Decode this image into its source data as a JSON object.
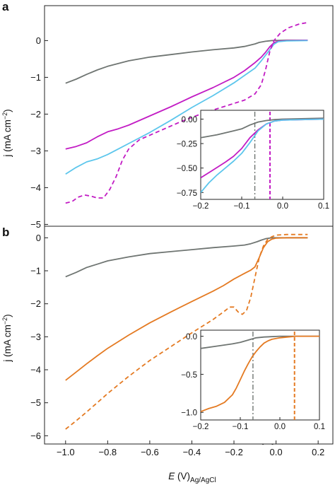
{
  "figure": {
    "panel_a_label": "a",
    "panel_b_label": "b",
    "ylabel": "j (mA cm−2)",
    "ylabel_main": "j (mA cm",
    "ylabel_exp": "−2",
    "ylabel_close": ")",
    "xlabel_E": "E",
    "xlabel_units": " (V)",
    "xlabel_sub": "Ag/AgCl"
  },
  "colors": {
    "grey": "#6f7572",
    "magenta": "#c21cc4",
    "cyan": "#5cc6ec",
    "orange": "#e47a22"
  },
  "chart_data": [
    {
      "id": "a-main",
      "type": "line",
      "ylabel": "j (mA cm−2)",
      "xlabel": "",
      "xlim": [
        -1.1,
        0.27
      ],
      "ylim": [
        -5.05,
        0.95
      ],
      "yticks": [
        0,
        -1,
        -2,
        -3,
        -4,
        -5
      ],
      "xticks": [],
      "series": [
        {
          "color": "#6f7572",
          "dash": false,
          "points": [
            [
              -1.0,
              -1.16
            ],
            [
              -0.95,
              -1.05
            ],
            [
              -0.9,
              -0.92
            ],
            [
              -0.85,
              -0.8
            ],
            [
              -0.8,
              -0.7
            ],
            [
              -0.7,
              -0.55
            ],
            [
              -0.6,
              -0.45
            ],
            [
              -0.5,
              -0.38
            ],
            [
              -0.4,
              -0.31
            ],
            [
              -0.3,
              -0.25
            ],
            [
              -0.2,
              -0.2
            ],
            [
              -0.15,
              -0.16
            ],
            [
              -0.1,
              -0.09
            ],
            [
              -0.08,
              -0.05
            ],
            [
              -0.05,
              -0.02
            ],
            [
              -0.02,
              0.0
            ],
            [
              0.05,
              0.01
            ],
            [
              0.15,
              0.01
            ]
          ]
        },
        {
          "color": "#c21cc4",
          "dash": false,
          "points": [
            [
              -1.0,
              -2.95
            ],
            [
              -0.95,
              -2.88
            ],
            [
              -0.9,
              -2.78
            ],
            [
              -0.85,
              -2.62
            ],
            [
              -0.8,
              -2.48
            ],
            [
              -0.75,
              -2.4
            ],
            [
              -0.7,
              -2.3
            ],
            [
              -0.6,
              -2.05
            ],
            [
              -0.5,
              -1.8
            ],
            [
              -0.4,
              -1.53
            ],
            [
              -0.3,
              -1.28
            ],
            [
              -0.2,
              -1.0
            ],
            [
              -0.15,
              -0.82
            ],
            [
              -0.1,
              -0.6
            ],
            [
              -0.07,
              -0.45
            ],
            [
              -0.05,
              -0.32
            ],
            [
              -0.03,
              -0.17
            ],
            [
              -0.01,
              -0.06
            ],
            [
              0.01,
              -0.02
            ],
            [
              0.05,
              0.0
            ],
            [
              0.15,
              0.01
            ]
          ]
        },
        {
          "color": "#5cc6ec",
          "dash": false,
          "points": [
            [
              -1.0,
              -3.63
            ],
            [
              -0.95,
              -3.45
            ],
            [
              -0.9,
              -3.3
            ],
            [
              -0.85,
              -3.22
            ],
            [
              -0.8,
              -3.1
            ],
            [
              -0.75,
              -2.95
            ],
            [
              -0.7,
              -2.8
            ],
            [
              -0.6,
              -2.5
            ],
            [
              -0.5,
              -2.17
            ],
            [
              -0.4,
              -1.82
            ],
            [
              -0.3,
              -1.5
            ],
            [
              -0.2,
              -1.15
            ],
            [
              -0.15,
              -0.95
            ],
            [
              -0.1,
              -0.75
            ],
            [
              -0.07,
              -0.55
            ],
            [
              -0.05,
              -0.4
            ],
            [
              -0.03,
              -0.25
            ],
            [
              -0.01,
              -0.1
            ],
            [
              0.01,
              -0.03
            ],
            [
              0.05,
              -0.01
            ],
            [
              0.15,
              0.0
            ]
          ]
        },
        {
          "color": "#c21cc4",
          "dash": true,
          "points": [
            [
              -1.0,
              -4.42
            ],
            [
              -0.97,
              -4.38
            ],
            [
              -0.94,
              -4.26
            ],
            [
              -0.91,
              -4.2
            ],
            [
              -0.88,
              -4.23
            ],
            [
              -0.85,
              -4.28
            ],
            [
              -0.82,
              -4.28
            ],
            [
              -0.79,
              -4.05
            ],
            [
              -0.76,
              -3.7
            ],
            [
              -0.73,
              -3.25
            ],
            [
              -0.7,
              -2.95
            ],
            [
              -0.65,
              -2.7
            ],
            [
              -0.55,
              -2.45
            ],
            [
              -0.45,
              -2.2
            ],
            [
              -0.35,
              -1.98
            ],
            [
              -0.25,
              -1.8
            ],
            [
              -0.15,
              -1.62
            ],
            [
              -0.1,
              -1.45
            ],
            [
              -0.07,
              -1.2
            ],
            [
              -0.05,
              -0.8
            ],
            [
              -0.03,
              -0.3
            ],
            [
              -0.01,
              0.0
            ],
            [
              0.02,
              0.2
            ],
            [
              0.06,
              0.35
            ],
            [
              0.11,
              0.45
            ],
            [
              0.15,
              0.49
            ]
          ]
        }
      ]
    },
    {
      "id": "a-inset",
      "type": "line",
      "ylabel": "j (mA cm−2)",
      "xlabel": "E (V)Ag/AgCl",
      "xlim": [
        -0.2,
        0.1
      ],
      "ylim": [
        -0.82,
        0.09
      ],
      "yticks": [
        0.0,
        -0.25,
        -0.5,
        -0.75
      ],
      "yticklabels": [
        "0.00",
        "−0.25",
        "−0.50",
        "−0.75"
      ],
      "xticks": [
        -0.2,
        -0.1,
        0.0,
        0.1
      ],
      "xticklabels": [
        "−0.2",
        "−0.1",
        "0.0",
        "0.1"
      ],
      "vlines": [
        {
          "x": -0.068,
          "color": "#6f7572",
          "style": "dashdot"
        },
        {
          "x": -0.031,
          "color": "#c21cc4",
          "style": "dashed"
        }
      ],
      "series": [
        {
          "color": "#6f7572",
          "dash": false,
          "points": [
            [
              -0.2,
              -0.19
            ],
            [
              -0.16,
              -0.16
            ],
            [
              -0.12,
              -0.12
            ],
            [
              -0.1,
              -0.1
            ],
            [
              -0.08,
              -0.06
            ],
            [
              -0.06,
              -0.03
            ],
            [
              -0.04,
              -0.015
            ],
            [
              -0.02,
              -0.005
            ],
            [
              0.0,
              0.0
            ],
            [
              0.1,
              0.01
            ]
          ]
        },
        {
          "color": "#c21cc4",
          "dash": false,
          "points": [
            [
              -0.2,
              -0.6
            ],
            [
              -0.17,
              -0.52
            ],
            [
              -0.14,
              -0.44
            ],
            [
              -0.12,
              -0.38
            ],
            [
              -0.1,
              -0.3
            ],
            [
              -0.08,
              -0.19
            ],
            [
              -0.06,
              -0.11
            ],
            [
              -0.04,
              -0.05
            ],
            [
              -0.02,
              -0.02
            ],
            [
              0.0,
              -0.01
            ],
            [
              0.1,
              0.0
            ]
          ]
        },
        {
          "color": "#5cc6ec",
          "dash": false,
          "points": [
            [
              -0.2,
              -0.75
            ],
            [
              -0.18,
              -0.65
            ],
            [
              -0.16,
              -0.57
            ],
            [
              -0.14,
              -0.5
            ],
            [
              -0.12,
              -0.43
            ],
            [
              -0.1,
              -0.35
            ],
            [
              -0.08,
              -0.24
            ],
            [
              -0.06,
              -0.12
            ],
            [
              -0.04,
              -0.05
            ],
            [
              -0.02,
              -0.02
            ],
            [
              0.0,
              -0.01
            ],
            [
              0.1,
              0.0
            ]
          ]
        }
      ]
    },
    {
      "id": "b-main",
      "type": "line",
      "ylabel": "j (mA cm−2)",
      "xlabel": "E (V)Ag/AgCl",
      "xlim": [
        -1.1,
        0.27
      ],
      "ylim": [
        -6.25,
        0.35
      ],
      "yticks": [
        0,
        -1,
        -2,
        -3,
        -4,
        -5,
        -6
      ],
      "xticks": [
        -1.0,
        -0.8,
        -0.6,
        -0.4,
        -0.2,
        0.0,
        0.2
      ],
      "xticklabels": [
        "−1.0",
        "−0.8",
        "−0.6",
        "−0.4",
        "−0.2",
        "0.0",
        "0.2"
      ],
      "series": [
        {
          "color": "#6f7572",
          "dash": false,
          "points": [
            [
              -1.0,
              -1.18
            ],
            [
              -0.95,
              -1.05
            ],
            [
              -0.9,
              -0.9
            ],
            [
              -0.85,
              -0.8
            ],
            [
              -0.8,
              -0.7
            ],
            [
              -0.7,
              -0.58
            ],
            [
              -0.6,
              -0.48
            ],
            [
              -0.5,
              -0.42
            ],
            [
              -0.4,
              -0.36
            ],
            [
              -0.3,
              -0.3
            ],
            [
              -0.2,
              -0.25
            ],
            [
              -0.15,
              -0.22
            ],
            [
              -0.12,
              -0.18
            ],
            [
              -0.09,
              -0.12
            ],
            [
              -0.07,
              -0.07
            ],
            [
              -0.05,
              -0.03
            ],
            [
              -0.02,
              0.0
            ],
            [
              0.05,
              0.0
            ],
            [
              0.15,
              0.0
            ]
          ]
        },
        {
          "color": "#e47a22",
          "dash": false,
          "points": [
            [
              -1.0,
              -4.32
            ],
            [
              -0.95,
              -4.07
            ],
            [
              -0.9,
              -3.82
            ],
            [
              -0.85,
              -3.58
            ],
            [
              -0.8,
              -3.35
            ],
            [
              -0.7,
              -2.95
            ],
            [
              -0.6,
              -2.58
            ],
            [
              -0.5,
              -2.25
            ],
            [
              -0.4,
              -1.93
            ],
            [
              -0.3,
              -1.62
            ],
            [
              -0.25,
              -1.45
            ],
            [
              -0.2,
              -1.25
            ],
            [
              -0.15,
              -1.08
            ],
            [
              -0.12,
              -0.98
            ],
            [
              -0.1,
              -0.88
            ],
            [
              -0.08,
              -0.6
            ],
            [
              -0.06,
              -0.3
            ],
            [
              -0.04,
              -0.12
            ],
            [
              -0.02,
              -0.04
            ],
            [
              0.0,
              -0.01
            ],
            [
              0.05,
              0.0
            ],
            [
              0.15,
              0.0
            ]
          ]
        },
        {
          "color": "#e47a22",
          "dash": true,
          "points": [
            [
              -1.0,
              -5.8
            ],
            [
              -0.95,
              -5.55
            ],
            [
              -0.9,
              -5.28
            ],
            [
              -0.85,
              -5.0
            ],
            [
              -0.8,
              -4.72
            ],
            [
              -0.7,
              -4.2
            ],
            [
              -0.6,
              -3.72
            ],
            [
              -0.5,
              -3.3
            ],
            [
              -0.4,
              -2.88
            ],
            [
              -0.3,
              -2.48
            ],
            [
              -0.25,
              -2.25
            ],
            [
              -0.22,
              -2.1
            ],
            [
              -0.2,
              -2.1
            ],
            [
              -0.18,
              -2.25
            ],
            [
              -0.16,
              -2.32
            ],
            [
              -0.14,
              -2.2
            ],
            [
              -0.12,
              -1.8
            ],
            [
              -0.1,
              -1.2
            ],
            [
              -0.08,
              -0.6
            ],
            [
              -0.06,
              -0.25
            ],
            [
              -0.04,
              -0.05
            ],
            [
              -0.02,
              0.03
            ],
            [
              0.0,
              0.08
            ],
            [
              0.05,
              0.1
            ],
            [
              0.15,
              0.1
            ]
          ]
        }
      ]
    },
    {
      "id": "b-inset",
      "type": "line",
      "ylabel": "j (mA cm−2)",
      "xlabel": "E (V)Ag/AgCl",
      "xlim": [
        -0.2,
        0.1
      ],
      "ylim": [
        -1.1,
        0.08
      ],
      "yticks": [
        0.0,
        -0.5,
        -1.0
      ],
      "yticklabels": [
        "0.0",
        "−0.5",
        "−1.0"
      ],
      "xticks": [
        -0.2,
        -0.1,
        0.0,
        0.1
      ],
      "xticklabels": [
        "−0.2",
        "−0.1",
        "0.0",
        "0.1"
      ],
      "vlines": [
        {
          "x": -0.068,
          "color": "#6f7572",
          "style": "dashdot"
        },
        {
          "x": 0.037,
          "color": "#e47a22",
          "style": "dashed"
        }
      ],
      "series": [
        {
          "color": "#6f7572",
          "dash": false,
          "points": [
            [
              -0.2,
              -0.16
            ],
            [
              -0.16,
              -0.13
            ],
            [
              -0.12,
              -0.1
            ],
            [
              -0.1,
              -0.08
            ],
            [
              -0.08,
              -0.05
            ],
            [
              -0.06,
              -0.02
            ],
            [
              -0.04,
              -0.01
            ],
            [
              0.0,
              0.0
            ],
            [
              0.1,
              0.0
            ]
          ]
        },
        {
          "color": "#e47a22",
          "dash": false,
          "points": [
            [
              -0.2,
              -0.99
            ],
            [
              -0.18,
              -0.95
            ],
            [
              -0.16,
              -0.92
            ],
            [
              -0.14,
              -0.87
            ],
            [
              -0.12,
              -0.77
            ],
            [
              -0.11,
              -0.68
            ],
            [
              -0.1,
              -0.57
            ],
            [
              -0.09,
              -0.46
            ],
            [
              -0.08,
              -0.36
            ],
            [
              -0.07,
              -0.27
            ],
            [
              -0.06,
              -0.2
            ],
            [
              -0.05,
              -0.14
            ],
            [
              -0.04,
              -0.09
            ],
            [
              -0.03,
              -0.06
            ],
            [
              -0.02,
              -0.04
            ],
            [
              0.0,
              -0.02
            ],
            [
              0.02,
              -0.01
            ],
            [
              0.04,
              0.0
            ],
            [
              0.1,
              0.0
            ]
          ]
        }
      ]
    }
  ]
}
